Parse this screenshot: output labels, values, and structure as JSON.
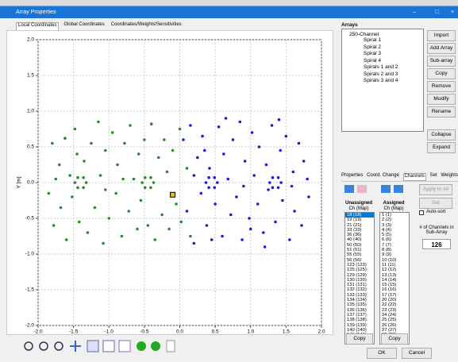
{
  "window": {
    "title": "Array Properties"
  },
  "tabs": [
    "Local Coordinates",
    "Global Coordinates",
    "Coordinates/Weights/Sensitivities"
  ],
  "chart_data": {
    "type": "scatter",
    "xlabel": "X [m]",
    "ylabel": "Y [m]",
    "grid": true,
    "xlim": [
      -2,
      2
    ],
    "ylim": [
      -2,
      2
    ],
    "xticks": [
      {
        "value": -2,
        "label": "-2.0"
      },
      {
        "value": -1.5,
        "label": "-1.5"
      },
      {
        "value": -1,
        "label": "-1.0"
      },
      {
        "value": -0.5,
        "label": "-0.5"
      },
      {
        "value": 0,
        "label": "0.0"
      },
      {
        "value": 0.5,
        "label": "0.5"
      },
      {
        "value": 1,
        "label": "1.0"
      },
      {
        "value": 1.5,
        "label": "1.5"
      },
      {
        "value": 2,
        "label": "2.0"
      }
    ],
    "yticks": [
      {
        "value": 2,
        "label": "2.0"
      },
      {
        "value": 1.5,
        "label": "1.5"
      },
      {
        "value": 1,
        "label": "1.0"
      },
      {
        "value": 0.5,
        "label": "0.5"
      },
      {
        "value": 0,
        "label": "0.0"
      },
      {
        "value": -0.5,
        "label": "-0.5"
      },
      {
        "value": -1,
        "label": "-1.0"
      },
      {
        "value": -1.5,
        "label": "-1.5"
      },
      {
        "value": -2,
        "label": "-2.0"
      }
    ],
    "series": [
      {
        "color": "#2a8a2a",
        "x": [
          -1.85,
          -1.8,
          -1.78,
          -1.7,
          -1.68,
          -1.62,
          -1.6,
          -1.55,
          -1.52,
          -1.48,
          -1.45,
          -1.42,
          -1.35,
          -1.3,
          -1.25,
          -1.2,
          -1.15,
          -1.12,
          -1.08,
          -1.05,
          -1.0,
          -0.95,
          -0.9,
          -0.88,
          -0.82,
          -0.78,
          -0.72,
          -0.7,
          -0.65,
          -0.6,
          -0.58,
          -0.55,
          -0.4,
          -0.35,
          -0.3,
          -0.25,
          -0.22,
          -0.18,
          -0.15,
          -0.1,
          -0.05,
          0.0,
          0.02,
          0.1,
          0.15,
          -1.75,
          -0.5,
          -0.45,
          -1.05,
          -0.8,
          -1.32,
          -1.36,
          -1.44,
          -1.48,
          -1.44,
          -1.36,
          -0.37,
          -0.41,
          -0.49,
          -0.53,
          -0.49,
          -0.41
        ],
        "y": [
          -0.15,
          0.55,
          -0.6,
          0.25,
          -0.35,
          0.62,
          -0.8,
          0.1,
          -0.2,
          0.75,
          0.4,
          -0.55,
          0.3,
          -0.7,
          0.55,
          -0.35,
          0.85,
          0.1,
          -0.85,
          0.45,
          -0.5,
          0.7,
          -0.15,
          0.25,
          -0.75,
          0.55,
          -0.4,
          0.8,
          0.05,
          -0.65,
          0.4,
          -0.25,
          0.82,
          -0.8,
          0.35,
          -0.45,
          0.6,
          0.15,
          -0.65,
          0.45,
          -0.3,
          0.75,
          -0.55,
          0.2,
          -0.75,
          0.05,
          0.6,
          -0.6,
          -0.1,
          0.05,
          0,
          0.07,
          0.07,
          0,
          -0.07,
          -0.07,
          0,
          0.07,
          0.07,
          0,
          -0.07,
          -0.07
        ]
      },
      {
        "color": "#1c1cd4",
        "x": [
          0.05,
          0.1,
          0.15,
          0.2,
          0.25,
          0.3,
          0.32,
          0.38,
          0.42,
          0.5,
          0.55,
          0.6,
          0.62,
          0.68,
          0.72,
          0.75,
          0.8,
          0.85,
          0.88,
          0.92,
          0.98,
          1.02,
          1.05,
          1.1,
          1.12,
          1.18,
          1.22,
          1.25,
          1.3,
          1.35,
          1.42,
          1.45,
          1.5,
          1.55,
          1.6,
          1.62,
          1.68,
          1.72,
          1.75,
          1.82,
          0.2,
          0.9,
          1.4,
          0.45,
          1.2,
          0.65,
          1.8,
          0.35,
          1.0,
          1.58,
          0.53,
          0.49,
          0.41,
          0.37,
          0.41,
          0.49,
          1.43,
          1.39,
          1.31,
          1.27,
          1.31,
          1.39
        ],
        "y": [
          0.6,
          -0.4,
          0.8,
          -0.85,
          0.35,
          -0.15,
          0.65,
          -0.6,
          0.2,
          -0.3,
          0.78,
          -0.75,
          0.4,
          0.05,
          -0.45,
          0.6,
          -0.2,
          0.85,
          -0.8,
          0.3,
          -0.5,
          0.7,
          0.1,
          -0.3,
          0.5,
          -0.7,
          0.25,
          -0.1,
          0.8,
          -0.55,
          0.45,
          -0.25,
          0.65,
          -0.8,
          0.15,
          -0.4,
          0.55,
          -0.6,
          0.3,
          -0.2,
          0.1,
          -0.05,
          0.88,
          -0.8,
          -0.9,
          0.9,
          0.05,
          0.45,
          -0.65,
          -0.05,
          0,
          0.07,
          0.07,
          0,
          -0.07,
          -0.07,
          0,
          0.07,
          0.07,
          0,
          -0.07,
          -0.07
        ]
      },
      {
        "color": "#e8c000",
        "marker": "square",
        "x": [
          -0.1
        ],
        "y": [
          -0.17
        ]
      }
    ]
  },
  "arrays": {
    "label": "Arrays",
    "root": "250-Channel",
    "children": [
      "Spiral 1",
      "Spiral 2",
      "Spiral 3",
      "Spiral 4",
      "Spirals 1 and 2",
      "Spirals 2 and 3",
      "Spirals 3 and 4"
    ]
  },
  "buttons": [
    "Import",
    "Add Array",
    "Sub-array",
    "Copy",
    "Remove",
    "Modify",
    "Rename",
    "Collapse",
    "Expand"
  ],
  "side_tabs": [
    "Properties",
    "Coord. Change",
    "Channels",
    "Set",
    "Weights"
  ],
  "channels": {
    "apply": "Apply to All",
    "set": "Set",
    "autosort": "Auto-sort",
    "count_label": "# of Channels in Sub-Array",
    "count": "126",
    "unassigned_title": "Unassigned",
    "unassigned_sub": "Ch (Map)",
    "assigned_title": "Assigned",
    "assigned_sub": "Ch (Map)",
    "unassigned": [
      "18 (18)",
      "19 (19)",
      "21 (21)",
      "33 (33)",
      "36 (36)",
      "40 (40)",
      "50 (50)",
      "51 (51)",
      "55 (55)",
      "56 (56)",
      "123 (123)",
      "125 (125)",
      "129 (129)",
      "130 (130)",
      "131 (131)",
      "132 (132)",
      "133 (133)",
      "134 (134)",
      "135 (135)",
      "136 (136)",
      "137 (137)",
      "138 (138)",
      "139 (139)",
      "140 (140)",
      "141 (141)",
      "142 (142)"
    ],
    "assigned": [
      "1 (1)",
      "2 (2)",
      "3 (3)",
      "4 (4)",
      "5 (5)",
      "6 (6)",
      "7 (7)",
      "8 (8)",
      "9 (9)",
      "10 (10)",
      "11 (11)",
      "12 (12)",
      "13 (13)",
      "14 (14)",
      "15 (15)",
      "16 (16)",
      "17 (17)",
      "20 (20)",
      "22 (22)",
      "23 (23)",
      "24 (24)",
      "25 (25)",
      "26 (26)",
      "27 (27)",
      "28 (28)",
      "29 (29)"
    ],
    "copy_left": "Copy",
    "copy_right": "Copy"
  },
  "footer": {
    "ok": "OK",
    "cancel": "Cancel"
  }
}
